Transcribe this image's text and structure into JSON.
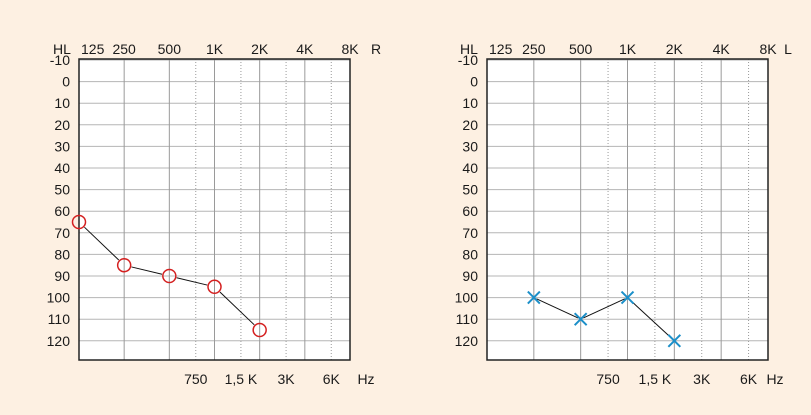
{
  "chart_data": [
    {
      "type": "line",
      "ear_label": "R",
      "hl_label": "HL",
      "hz_label": "Hz",
      "top_ticks": [
        "125",
        "250",
        "500",
        "1K",
        "2K",
        "4K",
        "8K"
      ],
      "bottom_ticks": [
        "750",
        "1,5 K",
        "3K",
        "6K"
      ],
      "y_ticks": [
        -10,
        0,
        10,
        20,
        30,
        40,
        50,
        60,
        70,
        80,
        90,
        100,
        110,
        120
      ],
      "ylim": [
        -10,
        120
      ],
      "y_inverted": true,
      "x_scale": "log2",
      "grid": true,
      "marker": "circle",
      "color": "#d42020",
      "series": [
        {
          "x": [
            "125",
            "250",
            "500",
            "1K",
            "2K"
          ],
          "values": [
            65,
            85,
            90,
            95,
            115
          ]
        }
      ]
    },
    {
      "type": "line",
      "ear_label": "L",
      "hl_label": "HL",
      "hz_label": "Hz",
      "top_ticks": [
        "125",
        "250",
        "500",
        "1K",
        "2K",
        "4K",
        "8K"
      ],
      "bottom_ticks": [
        "750",
        "1,5 K",
        "3K",
        "6K"
      ],
      "y_ticks": [
        -10,
        0,
        10,
        20,
        30,
        40,
        50,
        60,
        70,
        80,
        90,
        100,
        110,
        120
      ],
      "ylim": [
        -10,
        120
      ],
      "y_inverted": true,
      "x_scale": "log2",
      "grid": true,
      "marker": "cross",
      "color": "#1b8fc9",
      "series": [
        {
          "x": [
            "250",
            "500",
            "1K",
            "2K"
          ],
          "values": [
            100,
            110,
            100,
            120
          ]
        }
      ]
    }
  ]
}
